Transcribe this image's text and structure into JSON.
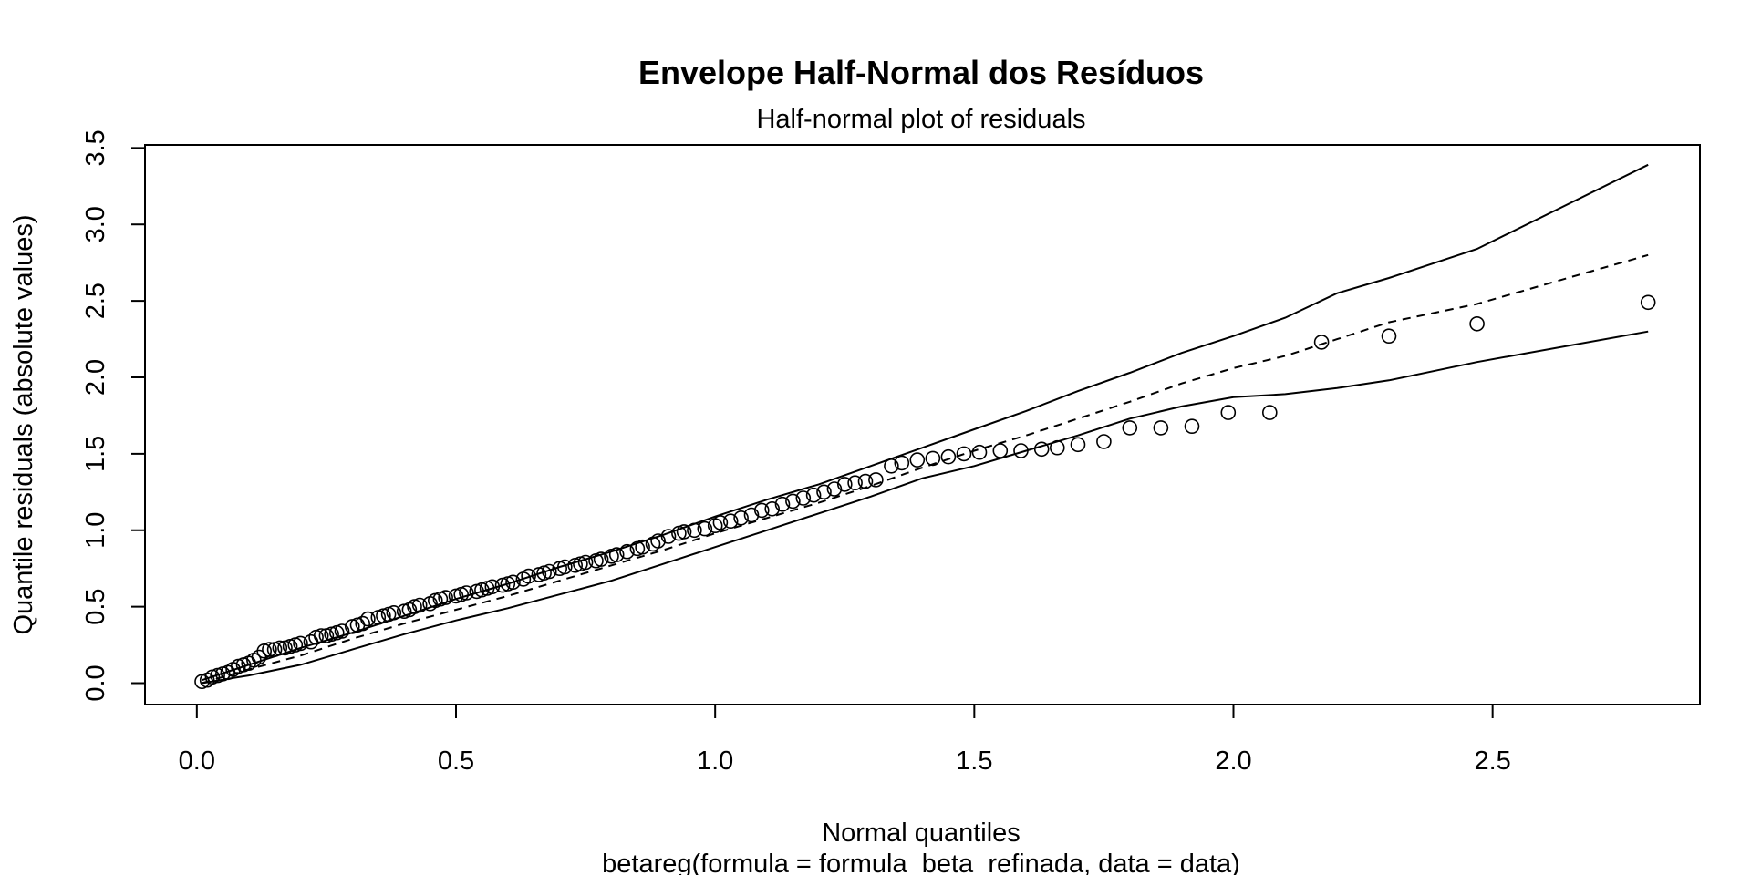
{
  "chart_data": {
    "type": "scatter",
    "title": "Envelope Half-Normal dos Resíduos",
    "subtitle": "Half-normal plot of residuals",
    "xlabel": "Normal quantiles",
    "sub_xlabel": "betareg(formula = formula_beta_refinada, data = data)",
    "ylabel": "Quantile residuals (absolute values)",
    "xlim": [
      -0.1,
      2.9
    ],
    "ylim": [
      -0.14,
      3.52
    ],
    "x_ticks": [
      0.0,
      0.5,
      1.0,
      1.5,
      2.0,
      2.5
    ],
    "x_tick_labels": [
      "0.0",
      "0.5",
      "1.0",
      "1.5",
      "2.0",
      "2.5"
    ],
    "y_ticks": [
      0.0,
      0.5,
      1.0,
      1.5,
      2.0,
      2.5,
      3.0,
      3.5
    ],
    "y_tick_labels": [
      "0.0",
      "0.5",
      "1.0",
      "1.5",
      "2.0",
      "2.5",
      "3.0",
      "3.5"
    ],
    "grid": false,
    "legend": "none",
    "points": {
      "x": [
        0.01,
        0.02,
        0.03,
        0.04,
        0.05,
        0.06,
        0.07,
        0.08,
        0.09,
        0.1,
        0.11,
        0.12,
        0.13,
        0.14,
        0.15,
        0.16,
        0.17,
        0.18,
        0.19,
        0.2,
        0.22,
        0.23,
        0.24,
        0.25,
        0.26,
        0.27,
        0.28,
        0.3,
        0.31,
        0.32,
        0.33,
        0.35,
        0.36,
        0.37,
        0.38,
        0.4,
        0.41,
        0.42,
        0.43,
        0.45,
        0.46,
        0.47,
        0.48,
        0.5,
        0.51,
        0.52,
        0.54,
        0.55,
        0.56,
        0.57,
        0.59,
        0.6,
        0.61,
        0.63,
        0.64,
        0.66,
        0.67,
        0.68,
        0.7,
        0.71,
        0.73,
        0.74,
        0.75,
        0.77,
        0.78,
        0.8,
        0.81,
        0.83,
        0.85,
        0.86,
        0.88,
        0.89,
        0.91,
        0.93,
        0.94,
        0.96,
        0.98,
        1.0,
        1.01,
        1.03,
        1.05,
        1.07,
        1.09,
        1.11,
        1.13,
        1.15,
        1.17,
        1.19,
        1.21,
        1.23,
        1.25,
        1.27,
        1.29,
        1.31,
        1.34,
        1.36,
        1.39,
        1.42,
        1.45,
        1.48,
        1.51,
        1.55,
        1.59,
        1.63,
        1.66,
        1.7,
        1.75,
        1.8,
        1.86,
        1.92,
        1.99,
        2.07,
        2.17,
        2.3,
        2.47,
        2.8
      ],
      "y": [
        0.01,
        0.02,
        0.04,
        0.05,
        0.06,
        0.07,
        0.09,
        0.11,
        0.12,
        0.13,
        0.15,
        0.17,
        0.21,
        0.22,
        0.22,
        0.23,
        0.23,
        0.24,
        0.25,
        0.26,
        0.27,
        0.3,
        0.31,
        0.31,
        0.32,
        0.33,
        0.34,
        0.37,
        0.38,
        0.39,
        0.42,
        0.43,
        0.44,
        0.45,
        0.46,
        0.47,
        0.48,
        0.5,
        0.51,
        0.52,
        0.54,
        0.55,
        0.56,
        0.57,
        0.58,
        0.59,
        0.6,
        0.61,
        0.62,
        0.63,
        0.64,
        0.65,
        0.66,
        0.68,
        0.7,
        0.71,
        0.72,
        0.73,
        0.75,
        0.76,
        0.77,
        0.78,
        0.79,
        0.8,
        0.81,
        0.83,
        0.84,
        0.86,
        0.88,
        0.89,
        0.91,
        0.93,
        0.96,
        0.98,
        0.99,
        1.0,
        1.01,
        1.03,
        1.05,
        1.06,
        1.08,
        1.1,
        1.13,
        1.14,
        1.17,
        1.19,
        1.21,
        1.23,
        1.25,
        1.27,
        1.3,
        1.31,
        1.32,
        1.33,
        1.42,
        1.44,
        1.46,
        1.47,
        1.48,
        1.5,
        1.51,
        1.52,
        1.52,
        1.53,
        1.54,
        1.56,
        1.58,
        1.67,
        1.67,
        1.68,
        1.77,
        1.77,
        2.23,
        2.27,
        2.35,
        2.49
      ]
    },
    "envelope": {
      "x": [
        0.01,
        0.1,
        0.2,
        0.3,
        0.4,
        0.5,
        0.6,
        0.7,
        0.8,
        0.9,
        1.0,
        1.1,
        1.2,
        1.3,
        1.4,
        1.5,
        1.6,
        1.7,
        1.8,
        1.9,
        2.0,
        2.1,
        2.2,
        2.3,
        2.47,
        2.8
      ],
      "lower": [
        0.0,
        0.05,
        0.12,
        0.22,
        0.32,
        0.41,
        0.49,
        0.58,
        0.67,
        0.78,
        0.89,
        1.0,
        1.11,
        1.22,
        1.34,
        1.42,
        1.52,
        1.62,
        1.73,
        1.81,
        1.87,
        1.89,
        1.93,
        1.98,
        2.1,
        2.3
      ],
      "median": [
        0.0,
        0.09,
        0.18,
        0.29,
        0.39,
        0.48,
        0.57,
        0.67,
        0.77,
        0.87,
        0.98,
        1.08,
        1.18,
        1.29,
        1.41,
        1.52,
        1.62,
        1.73,
        1.84,
        1.96,
        2.06,
        2.14,
        2.25,
        2.36,
        2.48,
        2.8
      ],
      "upper": [
        0.02,
        0.12,
        0.23,
        0.33,
        0.44,
        0.55,
        0.65,
        0.76,
        0.86,
        0.97,
        1.09,
        1.2,
        1.3,
        1.42,
        1.54,
        1.66,
        1.78,
        1.91,
        2.03,
        2.16,
        2.27,
        2.39,
        2.55,
        2.65,
        2.84,
        3.39
      ]
    }
  }
}
